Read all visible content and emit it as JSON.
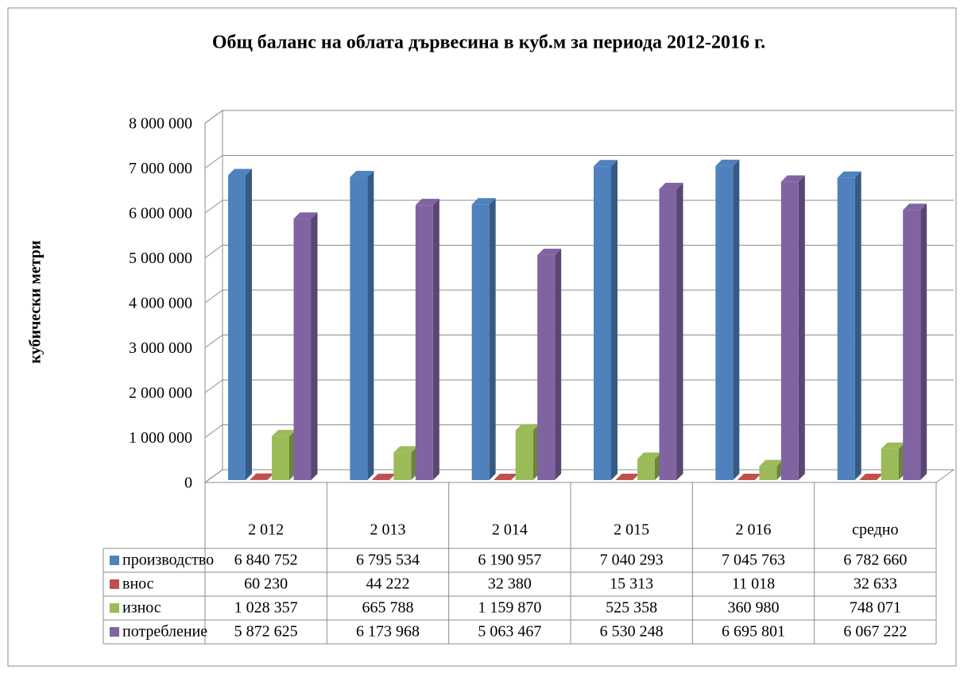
{
  "chart_data": {
    "type": "bar3d",
    "title": "Общ баланс на облата дървесина в куб.м за периода 2012-2016 г.",
    "y_axis_label": "кубически метри",
    "categories": [
      "2 012",
      "2 013",
      "2 014",
      "2 015",
      "2 016",
      "средно"
    ],
    "series": [
      {
        "name": "производство",
        "color": "#4f81bd",
        "values": [
          6840752,
          6795534,
          6190957,
          7040293,
          7045763,
          6782660
        ],
        "value_labels": [
          "6 840 752",
          "6 795 534",
          "6 190 957",
          "7 040 293",
          "7 045 763",
          "6 782 660"
        ]
      },
      {
        "name": "внос",
        "color": "#c0504d",
        "values": [
          60230,
          44222,
          32380,
          15313,
          11018,
          32633
        ],
        "value_labels": [
          "60 230",
          "44 222",
          "32 380",
          "15 313",
          "11 018",
          "32 633"
        ]
      },
      {
        "name": "износ",
        "color": "#9bbb59",
        "values": [
          1028357,
          665788,
          1159870,
          525358,
          360980,
          748071
        ],
        "value_labels": [
          "1 028 357",
          "665 788",
          "1 159 870",
          "525 358",
          "360 980",
          "748 071"
        ]
      },
      {
        "name": "потребление",
        "color": "#8064a2",
        "values": [
          5872625,
          6173968,
          5063467,
          6530248,
          6695801,
          6067222
        ],
        "value_labels": [
          "5 872 625",
          "6 173 968",
          "5 063 467",
          "6 530 248",
          "6 695 801",
          "6 067 222"
        ]
      }
    ],
    "ylim": [
      0,
      8000000
    ],
    "yticks": [
      0,
      {
        "value": 1000000,
        "label": "1 000 000"
      },
      {
        "value": 2000000,
        "label": "2 000 000"
      },
      {
        "value": 3000000,
        "label": "3 000 000"
      },
      {
        "value": 4000000,
        "label": "4 000 000"
      },
      {
        "value": 5000000,
        "label": "5 000 000"
      },
      {
        "value": 6000000,
        "label": "6 000 000"
      },
      {
        "value": 7000000,
        "label": "7 000 000"
      },
      {
        "value": 8000000,
        "label": "8 000 000"
      }
    ],
    "grid": true
  }
}
